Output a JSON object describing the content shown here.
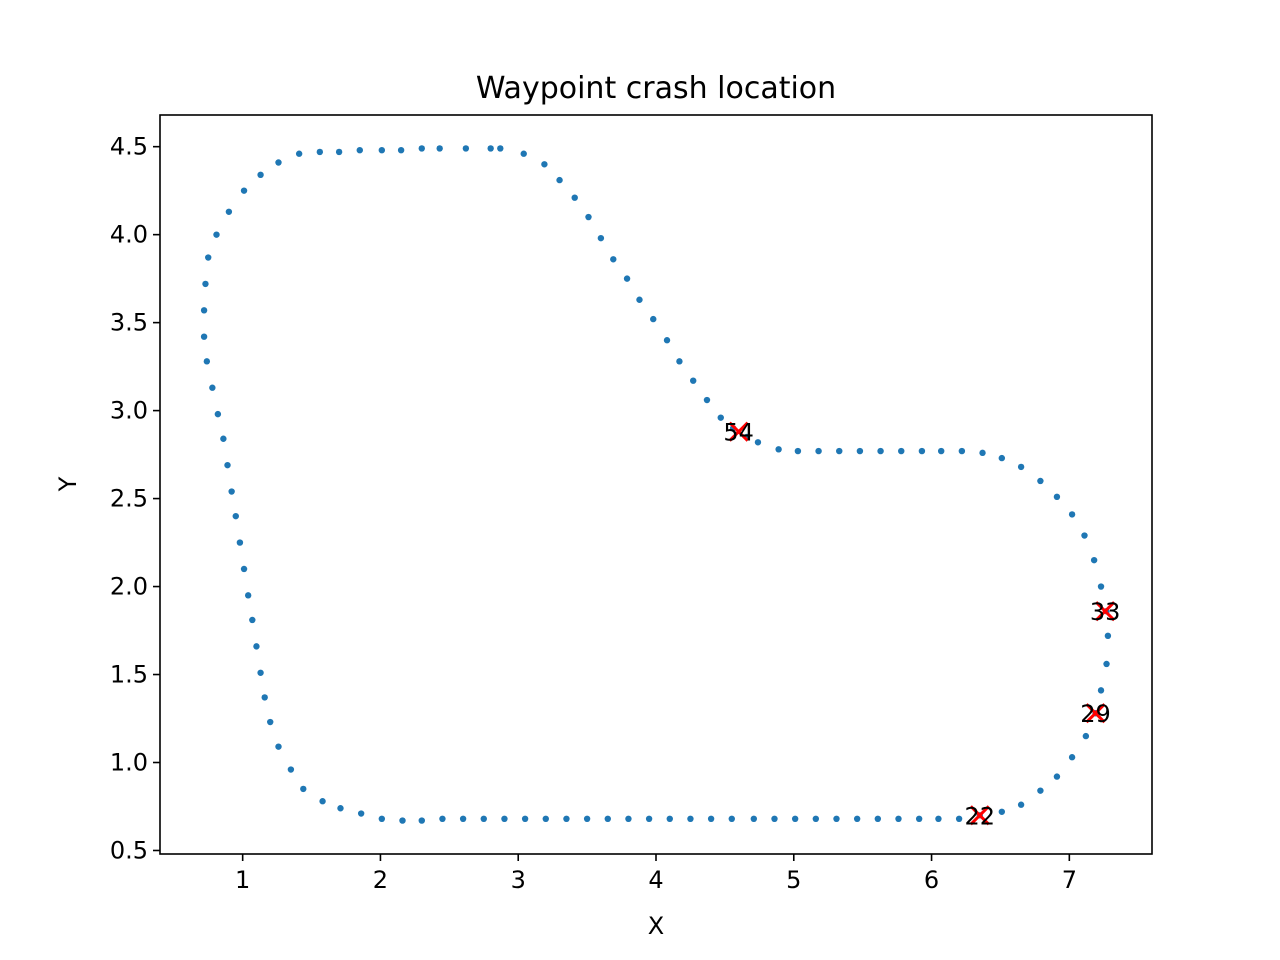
{
  "chart_data": {
    "type": "scatter",
    "title": "Waypoint crash location",
    "xlabel": "X",
    "ylabel": "Y",
    "xlim": [
      0.4,
      7.6
    ],
    "ylim": [
      0.48,
      4.68
    ],
    "xticks": [
      1,
      2,
      3,
      4,
      5,
      6,
      7
    ],
    "yticks": [
      0.5,
      1.0,
      1.5,
      2.0,
      2.5,
      3.0,
      3.5,
      4.0,
      4.5
    ],
    "ytick_labels": [
      "0.5",
      "1.0",
      "1.5",
      "2.0",
      "2.5",
      "3.0",
      "3.5",
      "4.0",
      "4.5"
    ],
    "grid": false,
    "colors": {
      "waypoints": "#1f77b4",
      "crash": "#ff0000"
    },
    "series": [
      {
        "kind": "waypoints",
        "points": [
          [
            0.73,
            3.72
          ],
          [
            0.75,
            3.87
          ],
          [
            0.81,
            4.0
          ],
          [
            0.9,
            4.13
          ],
          [
            1.01,
            4.25
          ],
          [
            1.13,
            4.34
          ],
          [
            1.26,
            4.41
          ],
          [
            1.41,
            4.46
          ],
          [
            1.56,
            4.47
          ],
          [
            1.7,
            4.47
          ],
          [
            1.85,
            4.48
          ],
          [
            2.01,
            4.48
          ],
          [
            2.15,
            4.48
          ],
          [
            2.3,
            4.49
          ],
          [
            2.43,
            4.49
          ],
          [
            2.62,
            4.49
          ],
          [
            2.8,
            4.49
          ],
          [
            2.87,
            4.49
          ],
          [
            3.04,
            4.46
          ],
          [
            3.19,
            4.4
          ],
          [
            3.3,
            4.31
          ],
          [
            3.41,
            4.21
          ],
          [
            3.51,
            4.1
          ],
          [
            3.6,
            3.98
          ],
          [
            3.69,
            3.86
          ],
          [
            3.79,
            3.75
          ],
          [
            3.88,
            3.63
          ],
          [
            3.98,
            3.52
          ],
          [
            4.08,
            3.4
          ],
          [
            4.17,
            3.28
          ],
          [
            4.27,
            3.17
          ],
          [
            4.37,
            3.06
          ],
          [
            4.47,
            2.96
          ],
          [
            4.56,
            2.9
          ],
          [
            4.66,
            2.85
          ],
          [
            4.74,
            2.82
          ],
          [
            4.89,
            2.78
          ],
          [
            5.03,
            2.77
          ],
          [
            5.18,
            2.77
          ],
          [
            5.33,
            2.77
          ],
          [
            5.48,
            2.77
          ],
          [
            5.63,
            2.77
          ],
          [
            5.78,
            2.77
          ],
          [
            5.93,
            2.77
          ],
          [
            6.07,
            2.77
          ],
          [
            6.22,
            2.77
          ],
          [
            6.37,
            2.76
          ],
          [
            6.51,
            2.73
          ],
          [
            6.65,
            2.68
          ],
          [
            6.79,
            2.6
          ],
          [
            6.91,
            2.51
          ],
          [
            7.02,
            2.41
          ],
          [
            7.11,
            2.29
          ],
          [
            7.18,
            2.15
          ],
          [
            7.23,
            2.0
          ],
          [
            7.27,
            1.86
          ],
          [
            7.28,
            1.72
          ],
          [
            7.27,
            1.56
          ],
          [
            7.23,
            1.41
          ],
          [
            7.19,
            1.28
          ],
          [
            7.12,
            1.15
          ],
          [
            7.02,
            1.03
          ],
          [
            6.91,
            0.92
          ],
          [
            6.79,
            0.84
          ],
          [
            6.65,
            0.76
          ],
          [
            6.51,
            0.72
          ],
          [
            6.35,
            0.7
          ],
          [
            6.2,
            0.68
          ],
          [
            6.05,
            0.68
          ],
          [
            5.91,
            0.68
          ],
          [
            5.76,
            0.68
          ],
          [
            5.61,
            0.68
          ],
          [
            5.46,
            0.68
          ],
          [
            5.31,
            0.68
          ],
          [
            5.16,
            0.68
          ],
          [
            5.01,
            0.68
          ],
          [
            4.86,
            0.68
          ],
          [
            4.71,
            0.68
          ],
          [
            4.55,
            0.68
          ],
          [
            4.4,
            0.68
          ],
          [
            4.25,
            0.68
          ],
          [
            4.1,
            0.68
          ],
          [
            3.95,
            0.68
          ],
          [
            3.8,
            0.68
          ],
          [
            3.65,
            0.68
          ],
          [
            3.5,
            0.68
          ],
          [
            3.35,
            0.68
          ],
          [
            3.2,
            0.68
          ],
          [
            3.05,
            0.68
          ],
          [
            2.9,
            0.68
          ],
          [
            2.75,
            0.68
          ],
          [
            2.6,
            0.68
          ],
          [
            2.45,
            0.68
          ],
          [
            2.3,
            0.67
          ],
          [
            2.16,
            0.67
          ],
          [
            2.01,
            0.68
          ],
          [
            1.86,
            0.71
          ],
          [
            1.71,
            0.74
          ],
          [
            1.58,
            0.78
          ],
          [
            1.44,
            0.85
          ],
          [
            1.35,
            0.96
          ],
          [
            1.26,
            1.09
          ],
          [
            1.2,
            1.23
          ],
          [
            1.16,
            1.37
          ],
          [
            1.13,
            1.51
          ],
          [
            1.1,
            1.66
          ],
          [
            1.07,
            1.81
          ],
          [
            1.04,
            1.95
          ],
          [
            1.01,
            2.1
          ],
          [
            0.98,
            2.25
          ],
          [
            0.95,
            2.4
          ],
          [
            0.92,
            2.54
          ],
          [
            0.89,
            2.69
          ],
          [
            0.86,
            2.84
          ],
          [
            0.82,
            2.98
          ],
          [
            0.78,
            3.13
          ],
          [
            0.74,
            3.28
          ],
          [
            0.72,
            3.42
          ],
          [
            0.72,
            3.57
          ]
        ]
      },
      {
        "kind": "crash",
        "points": [
          {
            "x": 4.6,
            "y": 2.88,
            "label": "54"
          },
          {
            "x": 7.26,
            "y": 1.86,
            "label": "33"
          },
          {
            "x": 7.19,
            "y": 1.28,
            "label": "29"
          },
          {
            "x": 6.35,
            "y": 0.7,
            "label": "22"
          }
        ]
      }
    ]
  }
}
